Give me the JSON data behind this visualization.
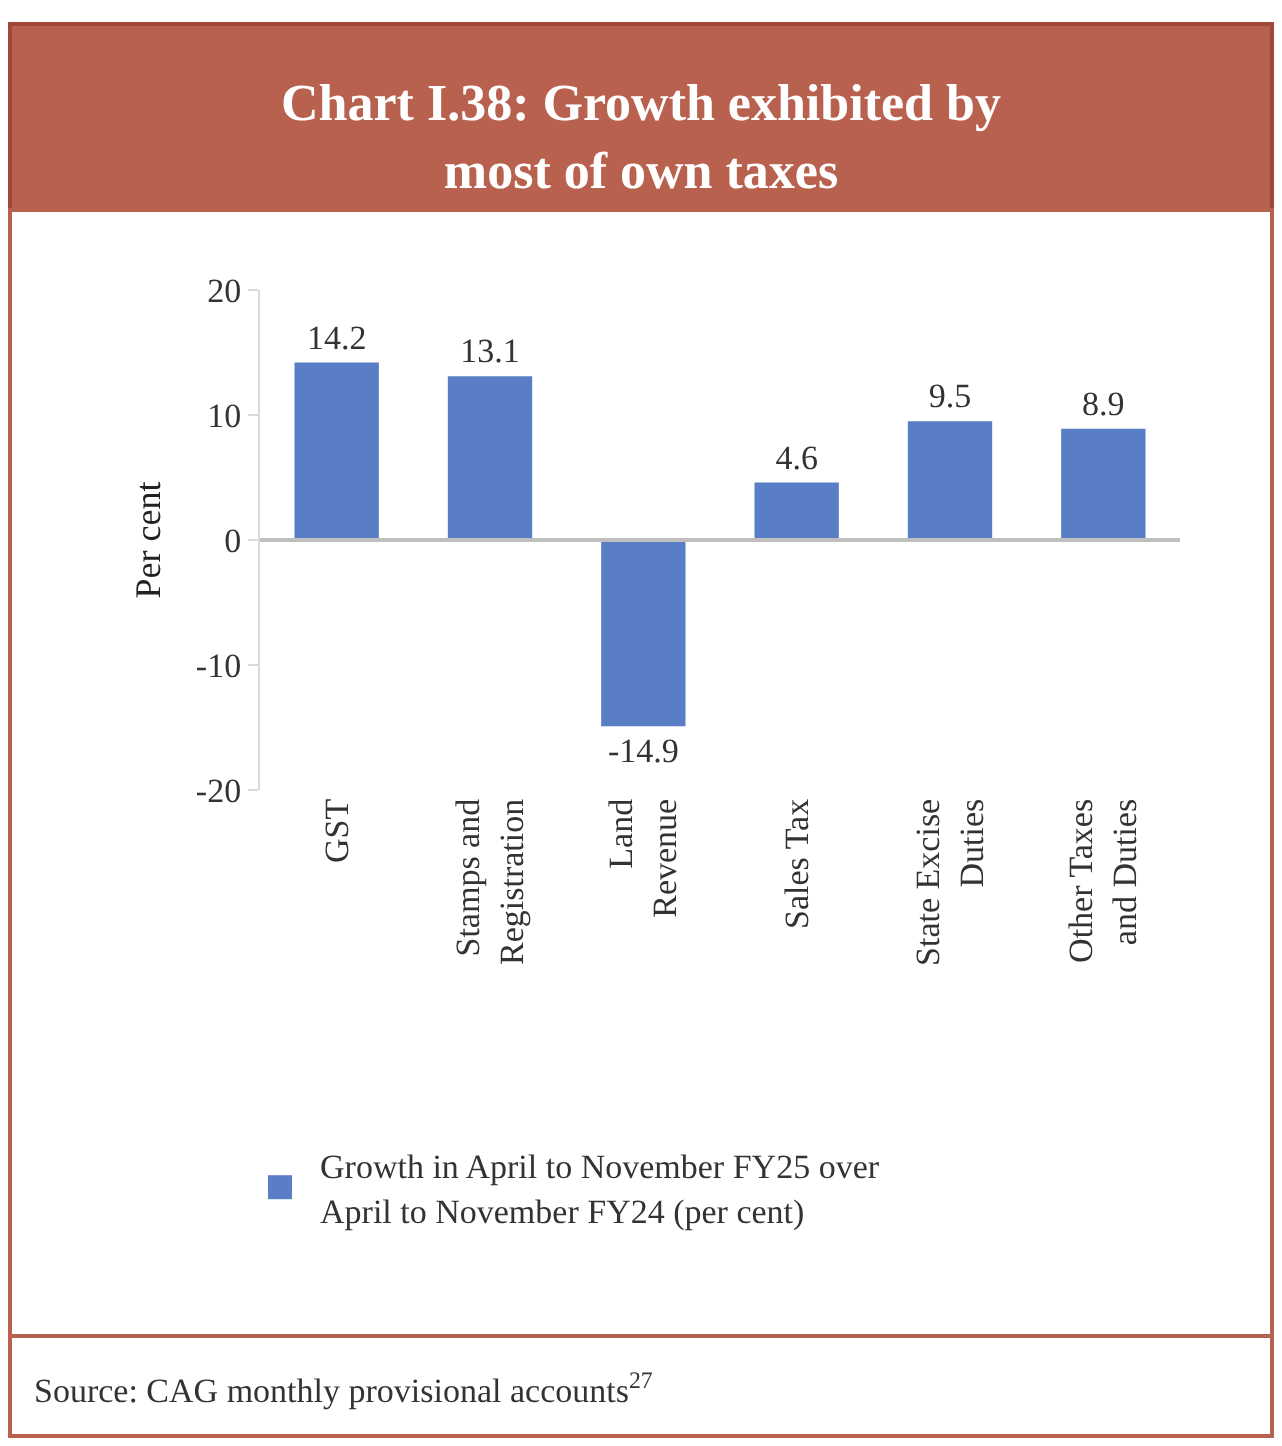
{
  "chart_data": {
    "type": "bar",
    "title": "Chart I.38: Growth exhibited by\nmost of own taxes",
    "ylabel": "Per cent",
    "categories": [
      "GST",
      "Stamps and\nRegistration",
      "Land\nRevenue",
      "Sales Tax",
      "State Excise\nDuties",
      "Other Taxes\nand Duties"
    ],
    "series": [
      {
        "name": "Growth in April to November FY25 over\nApril to November FY24 (per cent)",
        "color": "#5a7ec6",
        "values": [
          14.2,
          13.1,
          -14.9,
          4.6,
          9.5,
          8.9
        ]
      }
    ],
    "ylim": [
      -20,
      20
    ],
    "yticks": [
      -20,
      -10,
      0,
      10,
      20
    ],
    "data_labels": true,
    "legend": "bottom",
    "ref_lines": [
      {
        "axis": "y",
        "value": 0,
        "color": "#bfbfbf"
      }
    ],
    "annotations": [
      "Source: CAG monthly provisional accounts$^{27}$"
    ]
  }
}
